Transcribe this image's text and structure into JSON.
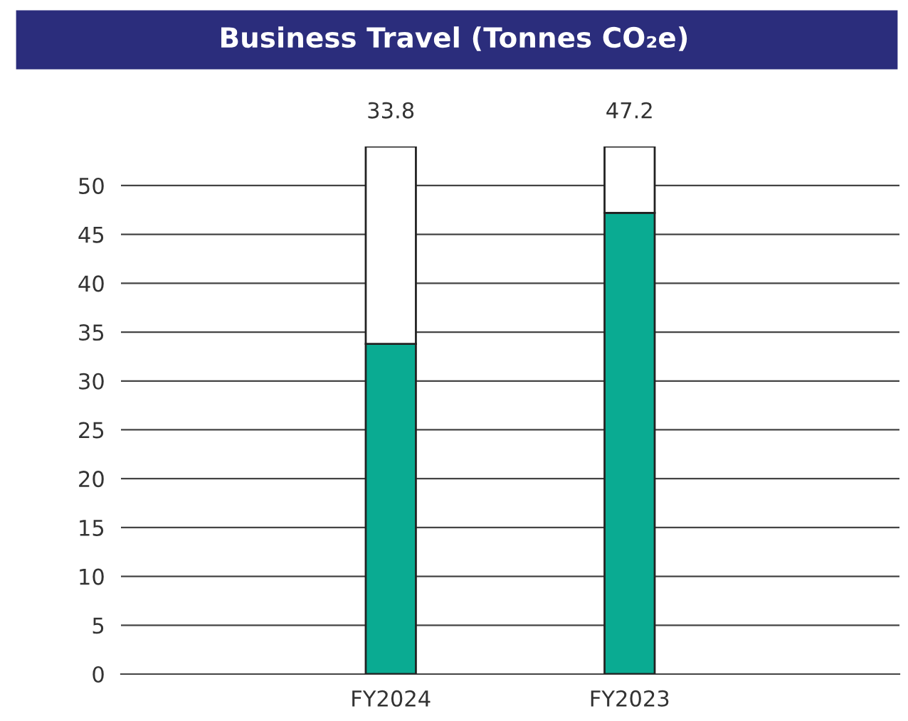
{
  "chart_data": {
    "type": "bar",
    "title": "Business Travel (Tonnes CO₂e)",
    "categories": [
      "FY2024",
      "FY2023"
    ],
    "stacked": true,
    "series": [
      {
        "color": "#0aab92",
        "values": [
          33.8,
          47.2
        ],
        "value_labels": [
          "33.8",
          "47.2"
        ]
      },
      {
        "color": "#ffffff",
        "values": [
          20.2,
          6.8
        ]
      }
    ],
    "ylim": [
      0,
      54
    ],
    "yticks": [
      0,
      5,
      10,
      15,
      20,
      25,
      30,
      35,
      40,
      45,
      50
    ],
    "grid": "y",
    "legend": false
  }
}
